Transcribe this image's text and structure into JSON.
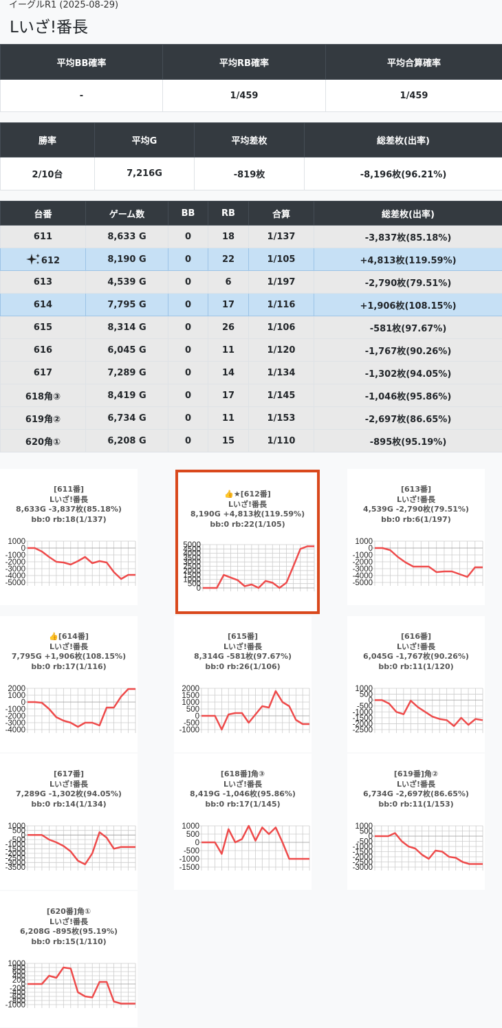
{
  "header": {
    "subtitle": "イーグルR1 (2025-08-29)",
    "title": "Lいざ!番長"
  },
  "summary1": {
    "headers": [
      "平均BB確率",
      "平均RB確率",
      "平均合算確率"
    ],
    "values": [
      "-",
      "1/459",
      "1/459"
    ]
  },
  "summary2": {
    "headers": [
      "勝率",
      "平均G",
      "平均差枚",
      "総差枚(出率)"
    ],
    "values": [
      "2/10台",
      "7,216G",
      "-819枚",
      "-8,196枚(96.21%)"
    ]
  },
  "machines": {
    "headers": [
      "台番",
      "ゲーム数",
      "BB",
      "RB",
      "合算",
      "総差枚(出率)"
    ],
    "rows": [
      {
        "no": "611",
        "games": "8,633 G",
        "bb": "0",
        "rb": "18",
        "total": "1/137",
        "diff": "-3,837枚(85.18%)",
        "highlight": false
      },
      {
        "no": "612",
        "games": "8,190 G",
        "bb": "0",
        "rb": "22",
        "total": "1/105",
        "diff": "+4,813枚(119.59%)",
        "highlight": true,
        "icon": "sparkle-icon"
      },
      {
        "no": "613",
        "games": "4,539 G",
        "bb": "0",
        "rb": "6",
        "total": "1/197",
        "diff": "-2,790枚(79.51%)",
        "highlight": false
      },
      {
        "no": "614",
        "games": "7,795 G",
        "bb": "0",
        "rb": "17",
        "total": "1/116",
        "diff": "+1,906枚(108.15%)",
        "highlight": true
      },
      {
        "no": "615",
        "games": "8,314 G",
        "bb": "0",
        "rb": "26",
        "total": "1/106",
        "diff": "-581枚(97.67%)",
        "highlight": false
      },
      {
        "no": "616",
        "games": "6,045 G",
        "bb": "0",
        "rb": "11",
        "total": "1/120",
        "diff": "-1,767枚(90.26%)",
        "highlight": false
      },
      {
        "no": "617",
        "games": "7,289 G",
        "bb": "0",
        "rb": "14",
        "total": "1/134",
        "diff": "-1,302枚(94.05%)",
        "highlight": false
      },
      {
        "no": "618角③",
        "games": "8,419 G",
        "bb": "0",
        "rb": "17",
        "total": "1/145",
        "diff": "-1,046枚(95.86%)",
        "highlight": false
      },
      {
        "no": "619角②",
        "games": "6,734 G",
        "bb": "0",
        "rb": "11",
        "total": "1/153",
        "diff": "-2,697枚(86.65%)",
        "highlight": false
      },
      {
        "no": "620角①",
        "games": "6,208 G",
        "bb": "0",
        "rb": "15",
        "total": "1/110",
        "diff": "-895枚(95.19%)",
        "highlight": false
      }
    ]
  },
  "colors": {
    "line": "#ee4a4a",
    "grid": "#cccccc",
    "highlight_border": "#d9481c",
    "row_highlight": "#c6e0f5"
  },
  "chart_data": [
    {
      "type": "line",
      "lines": [
        "[611番]",
        "Lいざ!番長",
        "8,633G -3,837枚(85.18%)",
        "bb:0 rb:18(1/137)"
      ],
      "yticks": [
        "1000",
        "0",
        "-1000",
        "-2000",
        "-3000",
        "-4000",
        "-5000"
      ],
      "ylim": [
        -5000,
        1000
      ],
      "values": [
        0,
        0,
        -500,
        -1300,
        -2000,
        -2100,
        -2400,
        -1900,
        -1300,
        -2200,
        -1900,
        -2100,
        -3500,
        -4500,
        -3900,
        -3900
      ]
    },
    {
      "type": "line",
      "lines": [
        "👍★[612番]",
        "Lいざ!番長",
        "8,190G +4,813枚(119.59%)",
        "bb:0 rb:22(1/105)"
      ],
      "yticks": [
        "5000",
        "4500",
        "4000",
        "3500",
        "3000",
        "2500",
        "2000",
        "1500",
        "1000",
        "500",
        "0"
      ],
      "ylim": [
        0,
        5000
      ],
      "values": [
        0,
        0,
        0,
        1500,
        1200,
        900,
        200,
        400,
        0,
        800,
        600,
        0,
        600,
        2500,
        4500,
        4800,
        4800
      ],
      "highlight": true
    },
    {
      "type": "line",
      "lines": [
        "[613番]",
        "Lいざ!番長",
        "4,539G -2,790枚(79.51%)",
        "bb:0 rb:6(1/197)"
      ],
      "yticks": [
        "1000",
        "0",
        "-1000",
        "-2000",
        "-3000",
        "-4000",
        "-5000"
      ],
      "ylim": [
        -5000,
        1000
      ],
      "values": [
        0,
        0,
        -300,
        -1300,
        -2100,
        -2700,
        -2700,
        -2700,
        -3500,
        -3400,
        -3400,
        -3800,
        -4200,
        -2800,
        -2800
      ]
    },
    {
      "type": "line",
      "lines": [
        "👍[614番]",
        "Lいざ!番長",
        "7,795G +1,906枚(108.15%)",
        "bb:0 rb:17(1/116)"
      ],
      "yticks": [
        "2000",
        "1000",
        "0",
        "-1000",
        "-2000",
        "-3000",
        "-4000"
      ],
      "ylim": [
        -4000,
        2000
      ],
      "values": [
        0,
        0,
        -100,
        -1000,
        -2200,
        -2700,
        -3000,
        -3600,
        -3000,
        -3000,
        -3400,
        -800,
        -800,
        800,
        1900,
        1900
      ]
    },
    {
      "type": "line",
      "lines": [
        "[615番]",
        "Lいざ!番長",
        "8,314G -581枚(97.67%)",
        "bb:0 rb:26(1/106)"
      ],
      "yticks": [
        "2000",
        "1500",
        "1000",
        "500",
        "0",
        "-500",
        "-1000"
      ],
      "ylim": [
        -1000,
        2000
      ],
      "values": [
        0,
        0,
        0,
        -1000,
        100,
        200,
        200,
        -500,
        100,
        700,
        600,
        1800,
        1000,
        700,
        -300,
        -600,
        -600
      ]
    },
    {
      "type": "line",
      "lines": [
        "[616番]",
        "Lいざ!番長",
        "6,045G -1,767枚(90.26%)",
        "bb:0 rb:11(1/120)"
      ],
      "yticks": [
        "1000",
        "500",
        "0",
        "-500",
        "-1000",
        "-1500",
        "-2000",
        "-2500"
      ],
      "ylim": [
        -2500,
        1000
      ],
      "values": [
        0,
        0,
        -300,
        -1000,
        -1200,
        -50,
        -600,
        -1000,
        -1400,
        -1600,
        -1700,
        -2200,
        -1500,
        -2100,
        -1600,
        -1700
      ]
    },
    {
      "type": "line",
      "lines": [
        "[617番]",
        "Lいざ!番長",
        "7,289G -1,302枚(94.05%)",
        "bb:0 rb:14(1/134)"
      ],
      "yticks": [
        "1000",
        "500",
        "0",
        "-500",
        "-1000",
        "-1500",
        "-2000",
        "-2500",
        "-3000",
        "-3500"
      ],
      "ylim": [
        -3500,
        1000
      ],
      "values": [
        0,
        0,
        0,
        -500,
        -800,
        -1200,
        -1800,
        -2800,
        -3200,
        -2000,
        300,
        -300,
        -1500,
        -1300,
        -1300,
        -1300
      ]
    },
    {
      "type": "line",
      "lines": [
        "[618番]角③",
        "Lいざ!番長",
        "8,419G -1,046枚(95.86%)",
        "bb:0 rb:17(1/145)"
      ],
      "yticks": [
        "1000",
        "500",
        "0",
        "-500",
        "-1000",
        "-1500"
      ],
      "ylim": [
        -1500,
        1000
      ],
      "values": [
        0,
        0,
        0,
        -700,
        800,
        0,
        200,
        1000,
        100,
        900,
        500,
        900,
        0,
        -1000,
        -1000,
        -1000,
        -1000
      ]
    },
    {
      "type": "line",
      "lines": [
        "[619番]角②",
        "Lいざ!番長",
        "6,734G -2,697枚(86.65%)",
        "bb:0 rb:11(1/153)"
      ],
      "yticks": [
        "1000",
        "500",
        "0",
        "-500",
        "-1000",
        "-1500",
        "-2000",
        "-2500",
        "-3000"
      ],
      "ylim": [
        -3000,
        1000
      ],
      "values": [
        0,
        0,
        0,
        300,
        -500,
        -1000,
        -1200,
        -1800,
        -2200,
        -1400,
        -1500,
        -2000,
        -2100,
        -2500,
        -2700,
        -2700,
        -2700
      ]
    },
    {
      "type": "line",
      "lines": [
        "[620番]角①",
        "Lいざ!番長",
        "6,208G -895枚(95.19%)",
        "bb:0 rb:15(1/110)"
      ],
      "yticks": [
        "1000",
        "800",
        "600",
        "400",
        "200",
        "0",
        "-200",
        "-400",
        "-600",
        "-800",
        "-1000"
      ],
      "ylim": [
        -1000,
        1000
      ],
      "values": [
        0,
        0,
        0,
        400,
        300,
        800,
        750,
        -400,
        -600,
        -650,
        100,
        100,
        -850,
        -950,
        -950,
        -950
      ]
    }
  ]
}
